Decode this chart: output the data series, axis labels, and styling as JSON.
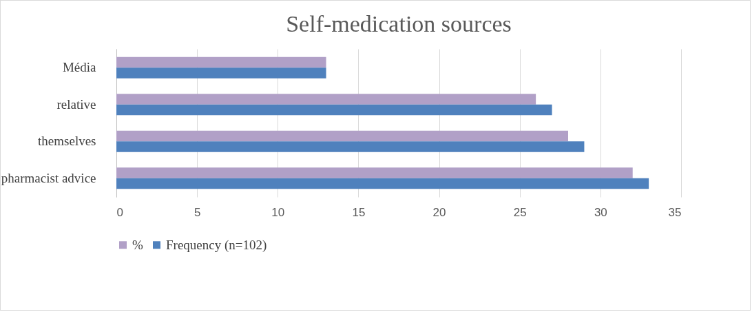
{
  "chart_data": {
    "type": "bar",
    "orientation": "horizontal",
    "title": "Self-medication sources",
    "categories": [
      "Média",
      "relative",
      "themselves",
      "pharmacist advice"
    ],
    "series": [
      {
        "name": "%",
        "color": "#b1a0c7",
        "values": [
          13,
          26,
          28,
          32
        ]
      },
      {
        "name": "Frequency (n=102)",
        "color": "#4f81bd",
        "values": [
          13,
          27,
          29,
          33
        ]
      }
    ],
    "xlim": [
      0,
      35
    ],
    "xticks": [
      0,
      5,
      10,
      15,
      20,
      25,
      30,
      35
    ],
    "grid": "x",
    "legend": "bottom"
  }
}
